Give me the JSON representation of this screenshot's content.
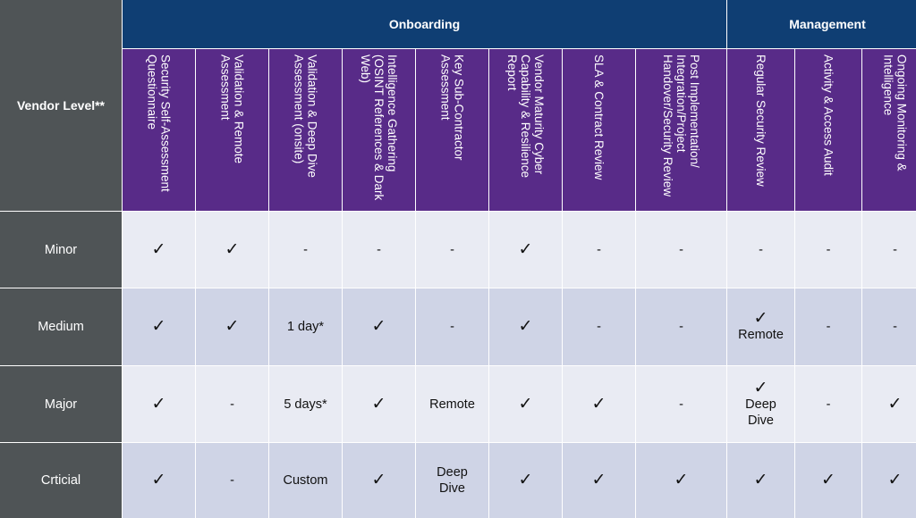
{
  "header": {
    "corner_label": "Vendor Level**",
    "groups": [
      "Onboarding",
      "Management"
    ],
    "columns": [
      "Security Self-Assessment Questionnaire",
      "Validation & Remote Assessment",
      "Validation & Deep Dive Assessment (onsite)",
      "Intelligence Gathering (OSINT References & Dark Web)",
      "Key Sub-Contractor Assessment",
      "Vendor Maturity Cyber Capability & Resilience Report",
      "SLA & Contract Review",
      "Post Implementation/ Integration/Project Handover/Security Review",
      "Regular Security Review",
      "Activity & Access Audit",
      "Ongoing Monitoring & Intelligence"
    ]
  },
  "rows": [
    {
      "label": "Minor",
      "cells": [
        "✓",
        "✓",
        "-",
        "-",
        "-",
        "✓",
        "-",
        "-",
        "-",
        "-",
        "-"
      ]
    },
    {
      "label": "Medium",
      "cells": [
        "✓",
        "✓",
        "1 day*",
        "✓",
        "-",
        "✓",
        "-",
        "-",
        "✓|Remote",
        "-",
        "-"
      ]
    },
    {
      "label": "Major",
      "cells": [
        "✓",
        "-",
        "5 days*",
        "✓",
        "Remote",
        "✓",
        "✓",
        "-",
        "✓|Deep|Dive",
        "-",
        "✓"
      ]
    },
    {
      "label": "Crticial",
      "cells": [
        "✓",
        "-",
        "Custom",
        "✓",
        "Deep|Dive",
        "✓",
        "✓",
        "✓",
        "✓",
        "✓",
        "✓"
      ]
    }
  ],
  "colors": {
    "group_header": "#0f3e73",
    "sub_header": "#582b88",
    "row_header": "#4f5456",
    "row_light": "#e9ebf3",
    "row_dark": "#cfd4e6"
  }
}
